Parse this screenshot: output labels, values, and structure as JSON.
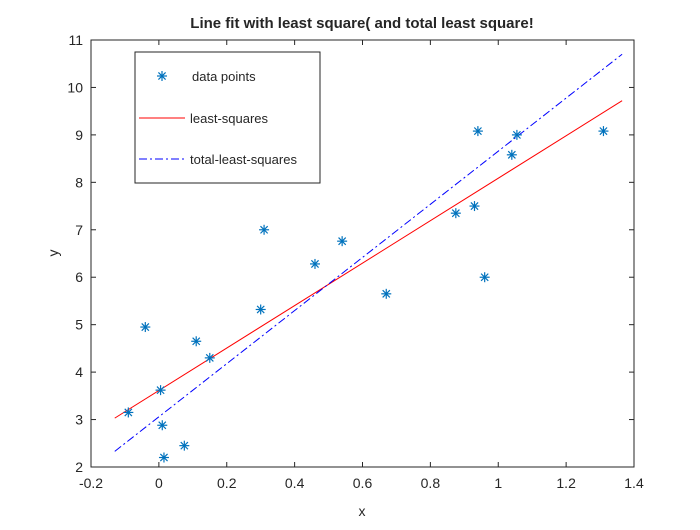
{
  "chart_data": {
    "type": "scatter",
    "title": "Line fit with least square( and total least square!",
    "xlabel": "x",
    "ylabel": "y",
    "xlim": [
      -0.2,
      1.4
    ],
    "ylim": [
      2,
      11
    ],
    "xticks": [
      -0.2,
      0,
      0.2,
      0.4,
      0.6,
      0.8,
      1,
      1.2,
      1.4
    ],
    "xtick_labels": [
      "-0.2",
      "0",
      "0.2",
      "0.4",
      "0.6",
      "0.8",
      "1",
      "1.2",
      "1.4"
    ],
    "yticks": [
      2,
      3,
      4,
      5,
      6,
      7,
      8,
      9,
      10,
      11
    ],
    "ytick_labels": [
      "2",
      "3",
      "4",
      "5",
      "6",
      "7",
      "8",
      "9",
      "10",
      "11"
    ],
    "grid": false,
    "legend_position": "top-left",
    "series": [
      {
        "name": "data points",
        "kind": "markers",
        "marker": "asterisk",
        "color": "#0072BD",
        "points": [
          [
            -0.09,
            3.15
          ],
          [
            -0.04,
            4.95
          ],
          [
            0.005,
            3.62
          ],
          [
            0.01,
            2.88
          ],
          [
            0.015,
            2.2
          ],
          [
            0.075,
            2.45
          ],
          [
            0.11,
            4.65
          ],
          [
            0.15,
            4.3
          ],
          [
            0.3,
            5.32
          ],
          [
            0.31,
            7.0
          ],
          [
            0.46,
            6.28
          ],
          [
            0.54,
            6.76
          ],
          [
            0.67,
            5.65
          ],
          [
            0.875,
            7.35
          ],
          [
            0.93,
            7.5
          ],
          [
            0.94,
            9.08
          ],
          [
            0.96,
            6.0
          ],
          [
            1.04,
            8.58
          ],
          [
            1.055,
            9.0
          ],
          [
            1.31,
            9.08
          ]
        ]
      },
      {
        "name": "least-squares",
        "kind": "line",
        "style": "solid",
        "color": "#FF0000",
        "points": [
          [
            -0.13,
            3.03
          ],
          [
            1.365,
            9.72
          ]
        ]
      },
      {
        "name": "total-least-squares",
        "kind": "line",
        "style": "dashdot",
        "color": "#0000FF",
        "points": [
          [
            -0.13,
            2.33
          ],
          [
            1.365,
            10.7
          ]
        ]
      }
    ]
  }
}
